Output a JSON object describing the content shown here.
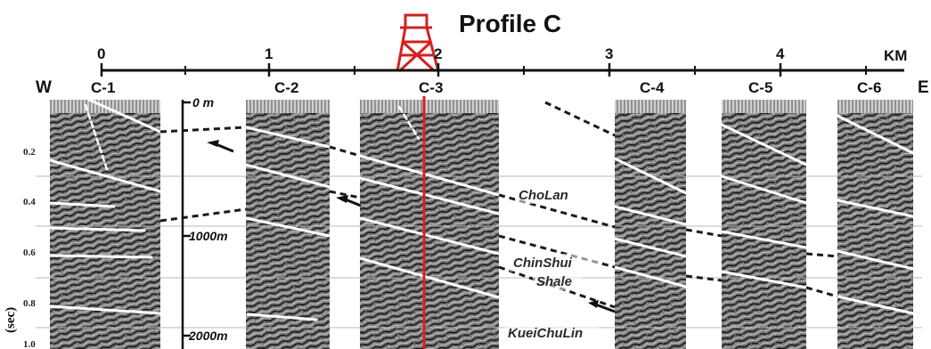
{
  "title": "Profile C",
  "km_unit": "KM",
  "km_ticks": [
    "0",
    "1",
    "2",
    "3",
    "4"
  ],
  "direction": {
    "west": "W",
    "east": "E"
  },
  "panels": [
    "C-1",
    "C-2",
    "C-3",
    "C-4",
    "C-5",
    "C-6"
  ],
  "y_axis": {
    "label": "(sec)",
    "ticks": [
      "0.2",
      "0.4",
      "0.6",
      "0.8",
      "1.0"
    ]
  },
  "depth_labels": [
    "0 m",
    "1000m",
    "2000m"
  ],
  "formations": [
    "ChoLan",
    "ChinShui",
    "Shale",
    "KueiChuLin"
  ],
  "colors": {
    "well": "#d42020",
    "reflector": "#ffffff",
    "fault_dash": "#1a1a1a",
    "seismic_bg": "#777777",
    "grid": "#b8b8b8"
  }
}
